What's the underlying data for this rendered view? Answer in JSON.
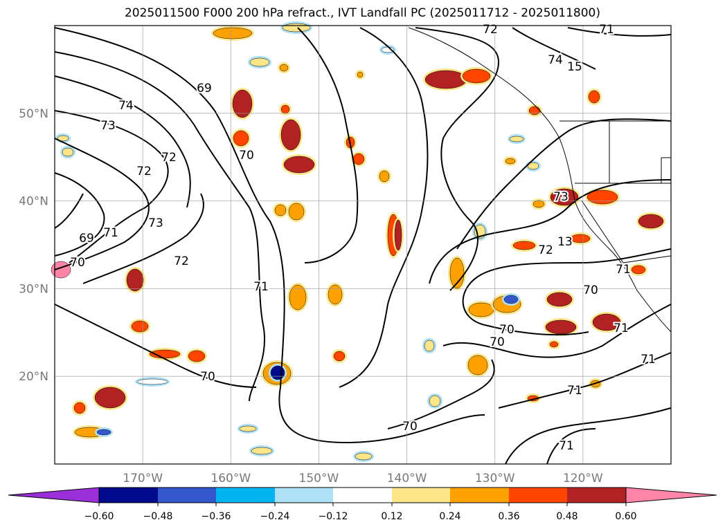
{
  "title": "2025011500 F000 200 hPa refract., IVT Landfall PC (2025011712 - 2025011800)",
  "map": {
    "lon_range": [
      -180,
      -110
    ],
    "lat_range": [
      10,
      60
    ],
    "lon_ticks": [
      "170°W",
      "160°W",
      "150°W",
      "140°W",
      "130°W",
      "120°W"
    ],
    "lat_ticks": [
      "50°N",
      "40°N",
      "30°N",
      "20°N"
    ],
    "contour_labels": [
      "72",
      "71",
      "74",
      "15",
      "69",
      "74",
      "73",
      "70",
      "72",
      "72",
      "73",
      "71",
      "69",
      "70",
      "72",
      "71",
      "73",
      "13",
      "72",
      "71",
      "70",
      "70",
      "70",
      "70",
      "71",
      "71",
      "71",
      "70",
      "71"
    ],
    "grid": true
  },
  "colorbar": {
    "tick_labels": [
      "−0.60",
      "−0.48",
      "−0.36",
      "−0.24",
      "−0.12",
      "0.12",
      "0.24",
      "0.36",
      "0.48",
      "0.60"
    ],
    "colors": [
      "#9b30d9",
      "#000a8c",
      "#3557cc",
      "#00b4f0",
      "#aee0f7",
      "#ffffff",
      "#fde68a",
      "#ffa100",
      "#ff4500",
      "#b22222",
      "#ff85a8"
    ]
  }
}
